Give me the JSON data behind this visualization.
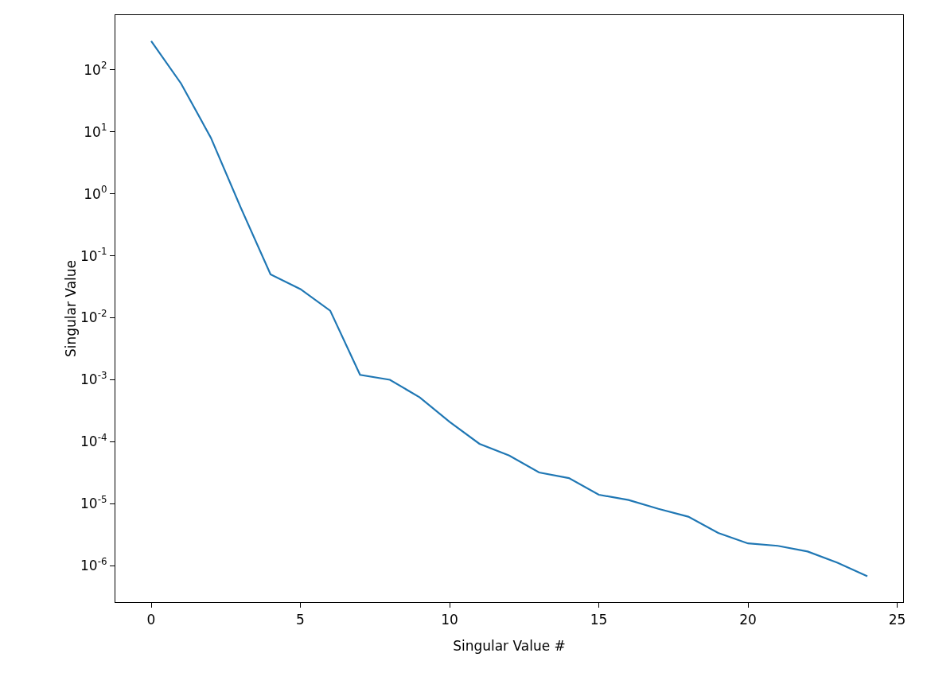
{
  "chart_data": {
    "type": "line",
    "xlabel": "Singular Value #",
    "ylabel": "Singular Value",
    "x": [
      0,
      1,
      2,
      3,
      4,
      5,
      6,
      7,
      8,
      9,
      10,
      11,
      12,
      13,
      14,
      15,
      16,
      17,
      18,
      19,
      20,
      21,
      22,
      23,
      24
    ],
    "series": [
      {
        "color": "#1f77b4",
        "values": [
          290,
          60,
          8,
          0.6,
          0.05,
          0.029,
          0.013,
          0.0012,
          0.001,
          0.00052,
          0.00021,
          9.3e-05,
          6e-05,
          3.2e-05,
          2.6e-05,
          1.4e-05,
          1.15e-05,
          8.3e-06,
          6.2e-06,
          3.4e-06,
          2.3e-06,
          2.1e-06,
          1.7e-06,
          1.12e-06,
          6.8e-07
        ]
      }
    ],
    "log": "y",
    "grid": false,
    "marker": "none",
    "line_style": "solid",
    "xlim": [
      -1.2,
      25.2
    ],
    "xticks": [
      0,
      5,
      10,
      15,
      20,
      25
    ],
    "ylim": [
      2.6e-07,
      760
    ],
    "yticks": [
      {
        "value": 1e-06,
        "label": "10$^{-6}$"
      },
      {
        "value": 1e-05,
        "label": "10$^{-5}$"
      },
      {
        "value": 0.0001,
        "label": "10$^{-4}$"
      },
      {
        "value": 0.001,
        "label": "10$^{-3}$"
      },
      {
        "value": 0.01,
        "label": "10$^{-2}$"
      },
      {
        "value": 0.1,
        "label": "10$^{-1}$"
      },
      {
        "value": 1,
        "label": "10$^{0}$"
      },
      {
        "value": 10,
        "label": "10$^{1}$"
      },
      {
        "value": 100,
        "label": "10$^{2}$"
      }
    ]
  }
}
